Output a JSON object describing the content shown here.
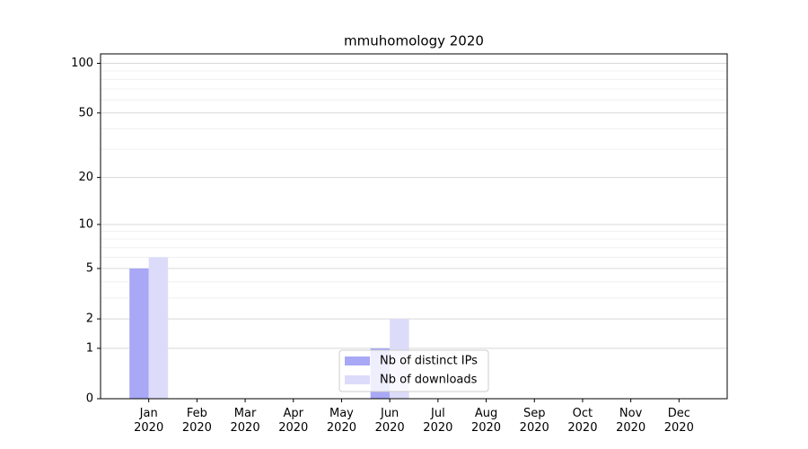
{
  "chart_data": {
    "type": "bar",
    "title": "mmuhomology 2020",
    "categories": [
      "Jan 2020",
      "Feb 2020",
      "Mar 2020",
      "Apr 2020",
      "May 2020",
      "Jun 2020",
      "Jul 2020",
      "Aug 2020",
      "Sep 2020",
      "Oct 2020",
      "Nov 2020",
      "Dec 2020"
    ],
    "series": [
      {
        "name": "Nb of distinct IPs",
        "color": "#a8a8f6",
        "values": [
          5,
          0,
          0,
          0,
          0,
          1,
          0,
          0,
          0,
          0,
          0,
          0
        ]
      },
      {
        "name": "Nb of downloads",
        "color": "#dcdcfa",
        "values": [
          6,
          0,
          0,
          0,
          0,
          2,
          0,
          0,
          0,
          0,
          0,
          0
        ]
      }
    ],
    "yscale": "log1p",
    "ylim": [
      0,
      114
    ],
    "yticks": [
      0,
      1,
      2,
      5,
      10,
      20,
      50,
      100
    ],
    "yminorticks": [
      3,
      4,
      6,
      7,
      8,
      9,
      30,
      40,
      60,
      70,
      80,
      90
    ],
    "grid": true,
    "legend": "lower center"
  }
}
